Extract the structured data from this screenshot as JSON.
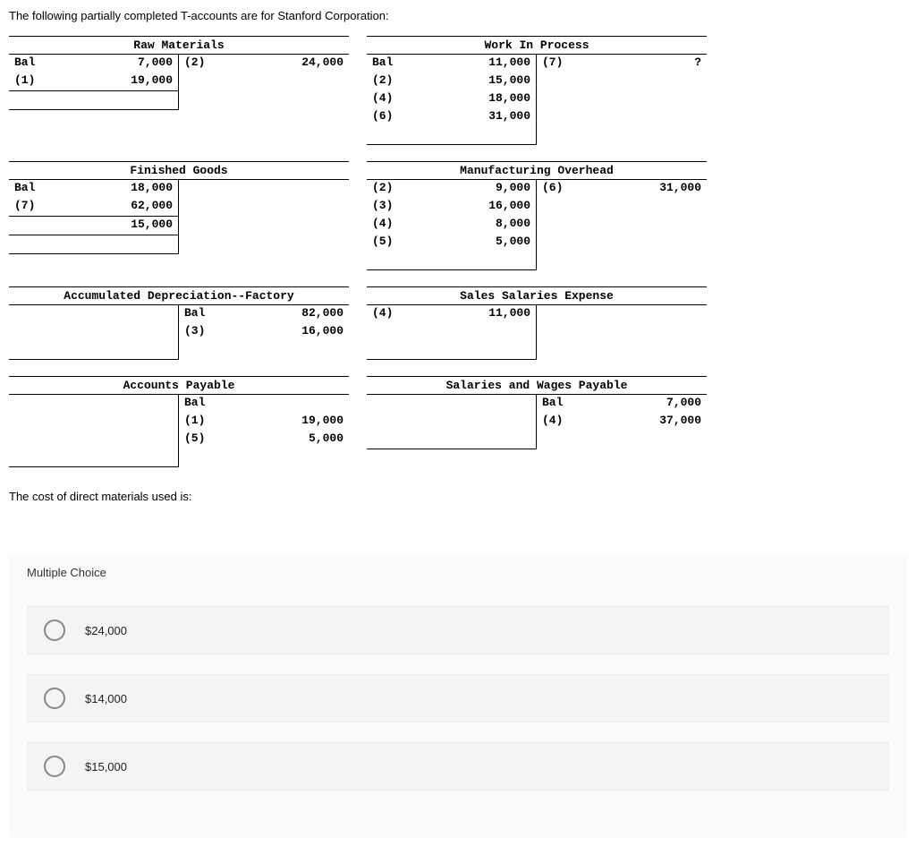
{
  "intro": "The following partially completed T-accounts are for Stanford Corporation:",
  "accounts": {
    "rawMaterials": {
      "title": "Raw Materials",
      "left": [
        {
          "label": "Bal",
          "val": "7,000"
        },
        {
          "label": "(1)",
          "val": "19,000"
        }
      ],
      "right": [
        {
          "label": "(2)",
          "val": "24,000"
        }
      ],
      "leftLines": 1
    },
    "wip": {
      "title": "Work In Process",
      "left": [
        {
          "label": "Bal",
          "val": "11,000"
        },
        {
          "label": "(2)",
          "val": "15,000"
        },
        {
          "label": "(4)",
          "val": "18,000"
        },
        {
          "label": "(6)",
          "val": "31,000"
        }
      ],
      "right": [
        {
          "label": "(7)",
          "val": "?"
        }
      ],
      "leftLines": 0
    },
    "fg": {
      "title": "Finished Goods",
      "left": [
        {
          "label": "Bal",
          "val": "18,000"
        },
        {
          "label": "(7)",
          "val": "62,000"
        },
        {
          "label": "",
          "val": "15,000"
        }
      ],
      "right": [],
      "leftLines": 2
    },
    "moh": {
      "title": "Manufacturing Overhead",
      "left": [
        {
          "label": "(2)",
          "val": "9,000"
        },
        {
          "label": "(3)",
          "val": "16,000"
        },
        {
          "label": "(4)",
          "val": "8,000"
        },
        {
          "label": "(5)",
          "val": "5,000"
        }
      ],
      "right": [
        {
          "label": "(6)",
          "val": "31,000"
        }
      ],
      "leftLines": 0
    },
    "accdep": {
      "title": "Accumulated Depreciation--Factory",
      "left": [],
      "right": [
        {
          "label": "Bal",
          "val": "82,000"
        },
        {
          "label": "(3)",
          "val": "16,000"
        }
      ],
      "leftLines": 0
    },
    "sse": {
      "title": "Sales Salaries Expense",
      "left": [
        {
          "label": "(4)",
          "val": "11,000"
        }
      ],
      "right": [],
      "leftLines": 0
    },
    "ap": {
      "title": "Accounts Payable",
      "left": [],
      "right": [
        {
          "label": "Bal",
          "val": ""
        },
        {
          "label": "(1)",
          "val": "19,000"
        },
        {
          "label": "(5)",
          "val": "5,000"
        }
      ],
      "leftLines": 0
    },
    "swp": {
      "title": "Salaries and Wages Payable",
      "left": [],
      "right": [
        {
          "label": "Bal",
          "val": "7,000"
        },
        {
          "label": "(4)",
          "val": "37,000"
        }
      ],
      "leftLines": 0
    }
  },
  "question": "The cost of direct materials used is:",
  "mc": {
    "title": "Multiple Choice",
    "options": [
      "$24,000",
      "$14,000",
      "$15,000"
    ]
  }
}
